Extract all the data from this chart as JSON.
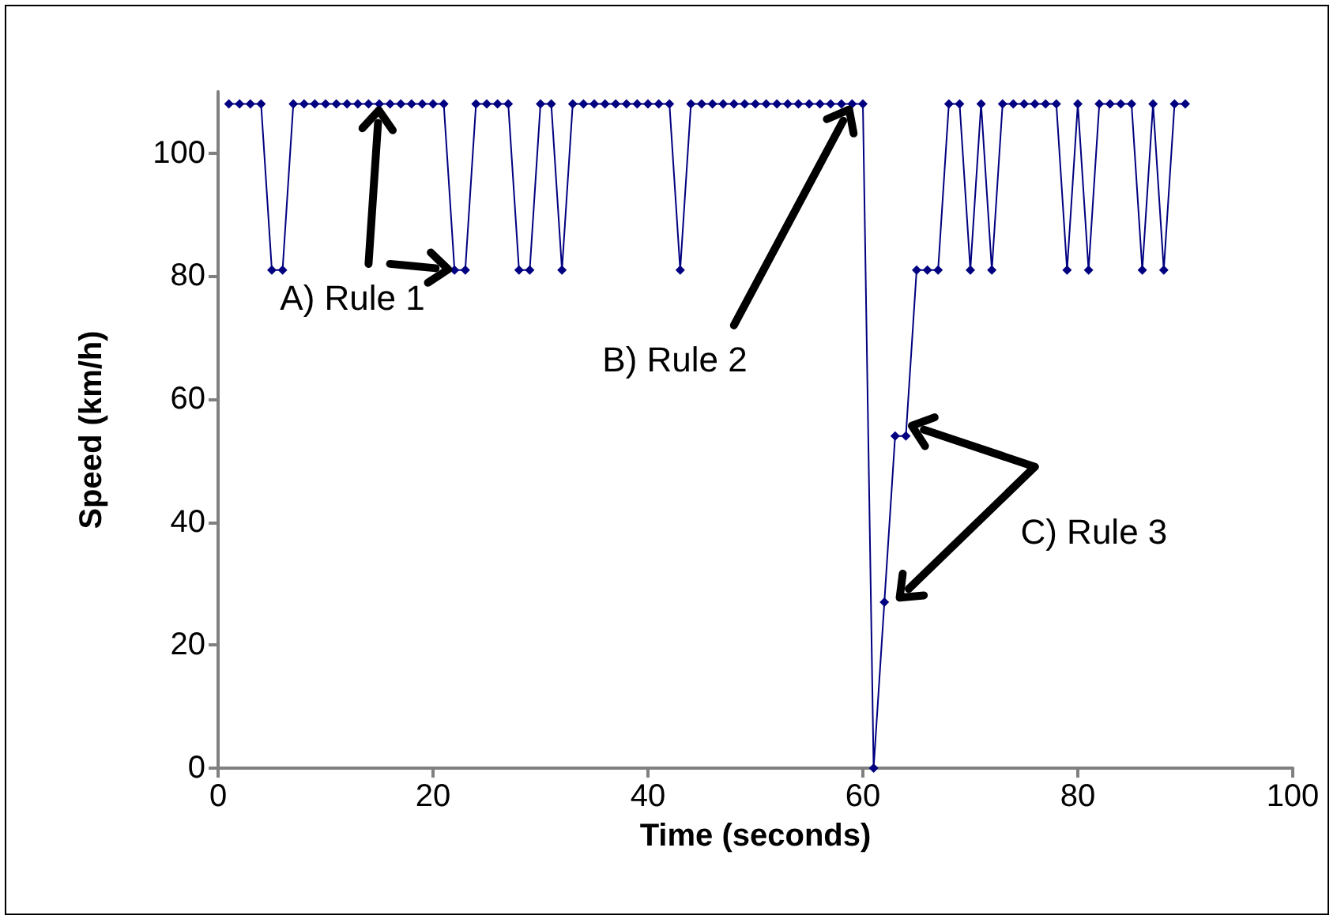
{
  "chart_data": {
    "type": "line",
    "xlabel": "Time (seconds)",
    "ylabel": "Speed (km/h)",
    "x": [
      1,
      2,
      3,
      4,
      5,
      6,
      7,
      8,
      9,
      10,
      11,
      12,
      13,
      14,
      15,
      16,
      17,
      18,
      19,
      20,
      21,
      22,
      23,
      24,
      25,
      26,
      27,
      28,
      29,
      30,
      31,
      32,
      33,
      34,
      35,
      36,
      37,
      38,
      39,
      40,
      41,
      42,
      43,
      44,
      45,
      46,
      47,
      48,
      49,
      50,
      51,
      52,
      53,
      54,
      55,
      56,
      57,
      58,
      59,
      60,
      61,
      62,
      63,
      64,
      65,
      66,
      67,
      68,
      69,
      70,
      71,
      72,
      73,
      74,
      75,
      76,
      77,
      78,
      79,
      80,
      81,
      82,
      83,
      84,
      85,
      86,
      87,
      88,
      89,
      90
    ],
    "series": [
      {
        "color": "#000080",
        "values": [
          108,
          108,
          108,
          108,
          81,
          81,
          108,
          108,
          108,
          108,
          108,
          108,
          108,
          108,
          108,
          108,
          108,
          108,
          108,
          108,
          108,
          81,
          81,
          108,
          108,
          108,
          108,
          81,
          81,
          108,
          108,
          81,
          108,
          108,
          108,
          108,
          108,
          108,
          108,
          108,
          108,
          108,
          81,
          108,
          108,
          108,
          108,
          108,
          108,
          108,
          108,
          108,
          108,
          108,
          108,
          108,
          108,
          108,
          108,
          108,
          0,
          27,
          54,
          54,
          81,
          81,
          81,
          108,
          108,
          81,
          108,
          81,
          108,
          108,
          108,
          108,
          108,
          108,
          81,
          108,
          81,
          108,
          108,
          108,
          108,
          81,
          108,
          81,
          108,
          108
        ]
      }
    ],
    "xlim": [
      0,
      100
    ],
    "xticks": [
      0,
      20,
      40,
      60,
      80,
      100
    ],
    "ylim": [
      0,
      110
    ],
    "yticks": [
      0,
      20,
      40,
      60,
      80,
      100
    ],
    "grid": false,
    "marker": "diamond",
    "line_style": "solid",
    "annotations": [
      "A) Rule 1",
      "B) Rule 2",
      "C) Rule 3"
    ]
  }
}
